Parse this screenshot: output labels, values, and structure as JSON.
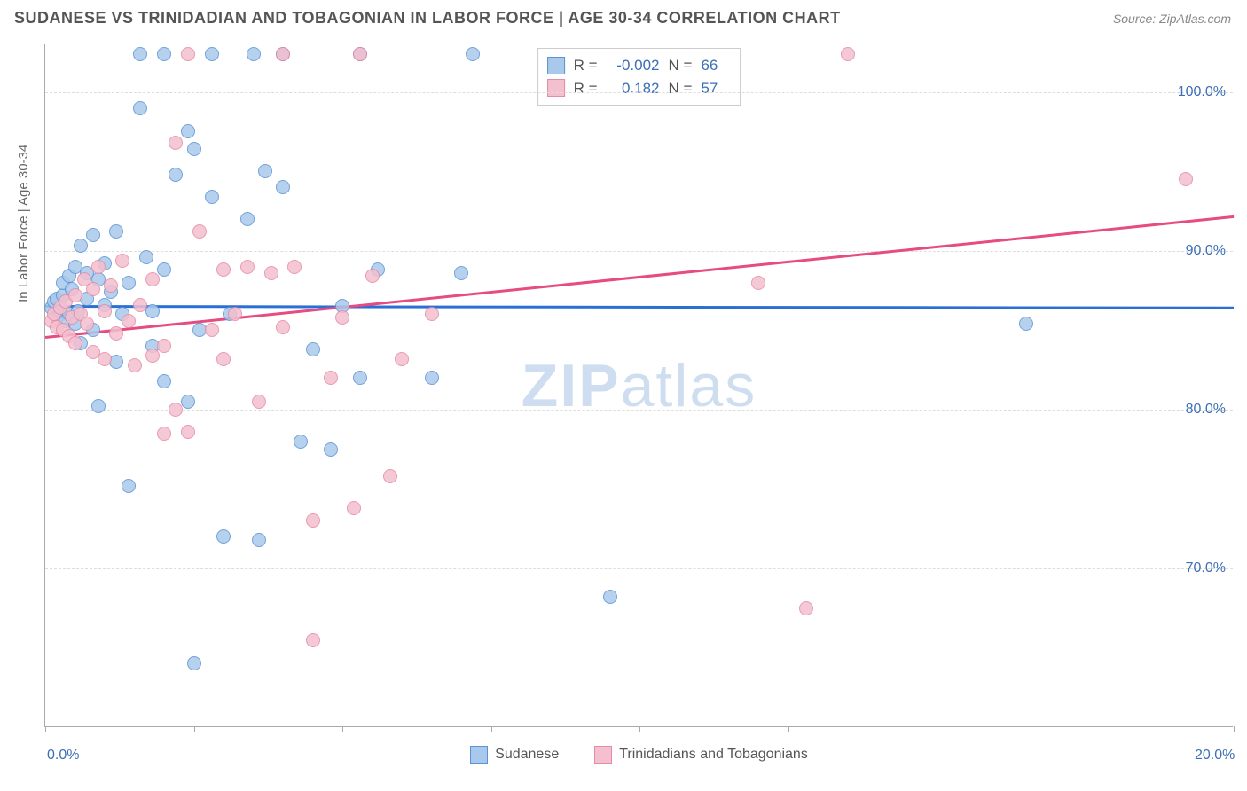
{
  "title": "SUDANESE VS TRINIDADIAN AND TOBAGONIAN IN LABOR FORCE | AGE 30-34 CORRELATION CHART",
  "source": "Source: ZipAtlas.com",
  "watermark": {
    "bold": "ZIP",
    "light": "atlas"
  },
  "y_axis_title": "In Labor Force | Age 30-34",
  "chart": {
    "type": "scatter",
    "xlim": [
      0,
      20
    ],
    "ylim": [
      60,
      103
    ],
    "x_ticks": [
      0,
      2.5,
      5,
      7.5,
      10,
      12.5,
      15,
      17.5,
      20
    ],
    "x_tick_labels": {
      "0": "0.0%",
      "20": "20.0%"
    },
    "y_grid": [
      70,
      80,
      90,
      100
    ],
    "y_tick_labels": {
      "70": "70.0%",
      "80": "80.0%",
      "90": "90.0%",
      "100": "100.0%"
    },
    "background_color": "#ffffff",
    "grid_color": "#dddddd",
    "axis_color": "#aaaaaa",
    "tick_label_color": "#3b6fb6",
    "marker_radius": 8,
    "marker_fill_opacity": 0.35
  },
  "series": [
    {
      "id": "sudanese",
      "label": "Sudanese",
      "stroke": "#5a93d4",
      "fill": "#a9c9ec",
      "R": "-0.002",
      "N": "66",
      "trend": {
        "y_start": 86.6,
        "y_end": 86.5,
        "color": "#2a6fd6"
      },
      "points": [
        [
          0.1,
          86.4
        ],
        [
          0.15,
          86.8
        ],
        [
          0.2,
          87.0
        ],
        [
          0.2,
          85.8
        ],
        [
          0.25,
          86.2
        ],
        [
          0.3,
          87.2
        ],
        [
          0.3,
          88.0
        ],
        [
          0.35,
          85.6
        ],
        [
          0.4,
          86.0
        ],
        [
          0.4,
          88.4
        ],
        [
          0.45,
          87.6
        ],
        [
          0.5,
          89.0
        ],
        [
          0.5,
          85.4
        ],
        [
          0.55,
          86.2
        ],
        [
          0.6,
          90.3
        ],
        [
          0.6,
          84.2
        ],
        [
          0.7,
          87.0
        ],
        [
          0.7,
          88.6
        ],
        [
          0.8,
          91.0
        ],
        [
          0.8,
          85.0
        ],
        [
          0.9,
          88.2
        ],
        [
          0.9,
          80.2
        ],
        [
          1.0,
          86.6
        ],
        [
          1.0,
          89.2
        ],
        [
          1.1,
          87.4
        ],
        [
          1.2,
          91.2
        ],
        [
          1.2,
          83.0
        ],
        [
          1.3,
          86.0
        ],
        [
          1.4,
          88.0
        ],
        [
          1.4,
          75.2
        ],
        [
          1.6,
          99.0
        ],
        [
          1.6,
          102.4
        ],
        [
          1.8,
          86.2
        ],
        [
          1.8,
          84.0
        ],
        [
          2.0,
          102.4
        ],
        [
          2.0,
          81.8
        ],
        [
          2.0,
          88.8
        ],
        [
          2.2,
          94.8
        ],
        [
          2.4,
          80.5
        ],
        [
          2.4,
          97.5
        ],
        [
          2.5,
          96.4
        ],
        [
          2.5,
          64.0
        ],
        [
          2.6,
          85.0
        ],
        [
          2.8,
          102.4
        ],
        [
          2.8,
          93.4
        ],
        [
          3.0,
          72.0
        ],
        [
          3.1,
          86.0
        ],
        [
          3.4,
          92.0
        ],
        [
          3.5,
          102.4
        ],
        [
          3.6,
          71.8
        ],
        [
          3.7,
          95.0
        ],
        [
          4.0,
          102.4
        ],
        [
          4.0,
          94.0
        ],
        [
          4.3,
          78.0
        ],
        [
          4.5,
          83.8
        ],
        [
          4.8,
          77.5
        ],
        [
          5.0,
          86.5
        ],
        [
          5.3,
          82.0
        ],
        [
          5.3,
          102.4
        ],
        [
          5.6,
          88.8
        ],
        [
          6.5,
          82.0
        ],
        [
          7.0,
          88.6
        ],
        [
          7.2,
          102.4
        ],
        [
          9.5,
          68.2
        ],
        [
          16.5,
          85.4
        ],
        [
          1.7,
          89.6
        ]
      ]
    },
    {
      "id": "trinidadian",
      "label": "Trinidadians and Tobagonians",
      "stroke": "#e68aa5",
      "fill": "#f4bfcf",
      "R": "0.182",
      "N": "57",
      "trend": {
        "y_start": 84.6,
        "y_end": 92.2,
        "color": "#e64b82"
      },
      "points": [
        [
          0.1,
          85.6
        ],
        [
          0.15,
          86.0
        ],
        [
          0.2,
          85.2
        ],
        [
          0.25,
          86.4
        ],
        [
          0.3,
          85.0
        ],
        [
          0.35,
          86.8
        ],
        [
          0.4,
          84.6
        ],
        [
          0.45,
          85.8
        ],
        [
          0.5,
          87.2
        ],
        [
          0.5,
          84.2
        ],
        [
          0.6,
          86.0
        ],
        [
          0.65,
          88.2
        ],
        [
          0.7,
          85.4
        ],
        [
          0.8,
          87.6
        ],
        [
          0.8,
          83.6
        ],
        [
          0.9,
          89.0
        ],
        [
          1.0,
          86.2
        ],
        [
          1.0,
          83.2
        ],
        [
          1.1,
          87.8
        ],
        [
          1.2,
          84.8
        ],
        [
          1.3,
          89.4
        ],
        [
          1.4,
          85.6
        ],
        [
          1.5,
          82.8
        ],
        [
          1.6,
          86.6
        ],
        [
          1.8,
          83.4
        ],
        [
          1.8,
          88.2
        ],
        [
          2.0,
          84.0
        ],
        [
          2.0,
          78.5
        ],
        [
          2.2,
          96.8
        ],
        [
          2.2,
          80.0
        ],
        [
          2.4,
          78.6
        ],
        [
          2.4,
          102.4
        ],
        [
          2.6,
          91.2
        ],
        [
          2.8,
          85.0
        ],
        [
          3.0,
          88.8
        ],
        [
          3.0,
          83.2
        ],
        [
          3.2,
          86.0
        ],
        [
          3.4,
          89.0
        ],
        [
          3.6,
          80.5
        ],
        [
          3.8,
          88.6
        ],
        [
          4.0,
          102.4
        ],
        [
          4.0,
          85.2
        ],
        [
          4.2,
          89.0
        ],
        [
          4.5,
          73.0
        ],
        [
          4.5,
          65.5
        ],
        [
          4.8,
          82.0
        ],
        [
          5.0,
          85.8
        ],
        [
          5.2,
          73.8
        ],
        [
          5.5,
          88.4
        ],
        [
          5.8,
          75.8
        ],
        [
          6.0,
          83.2
        ],
        [
          6.5,
          86.0
        ],
        [
          12.0,
          88.0
        ],
        [
          12.8,
          67.5
        ],
        [
          13.5,
          102.4
        ],
        [
          19.2,
          94.5
        ],
        [
          5.3,
          102.4
        ]
      ]
    }
  ],
  "stats_labels": {
    "R": "R =",
    "N": "N ="
  },
  "legend_stats": [
    {
      "series": "sudanese"
    },
    {
      "series": "trinidadian"
    }
  ]
}
